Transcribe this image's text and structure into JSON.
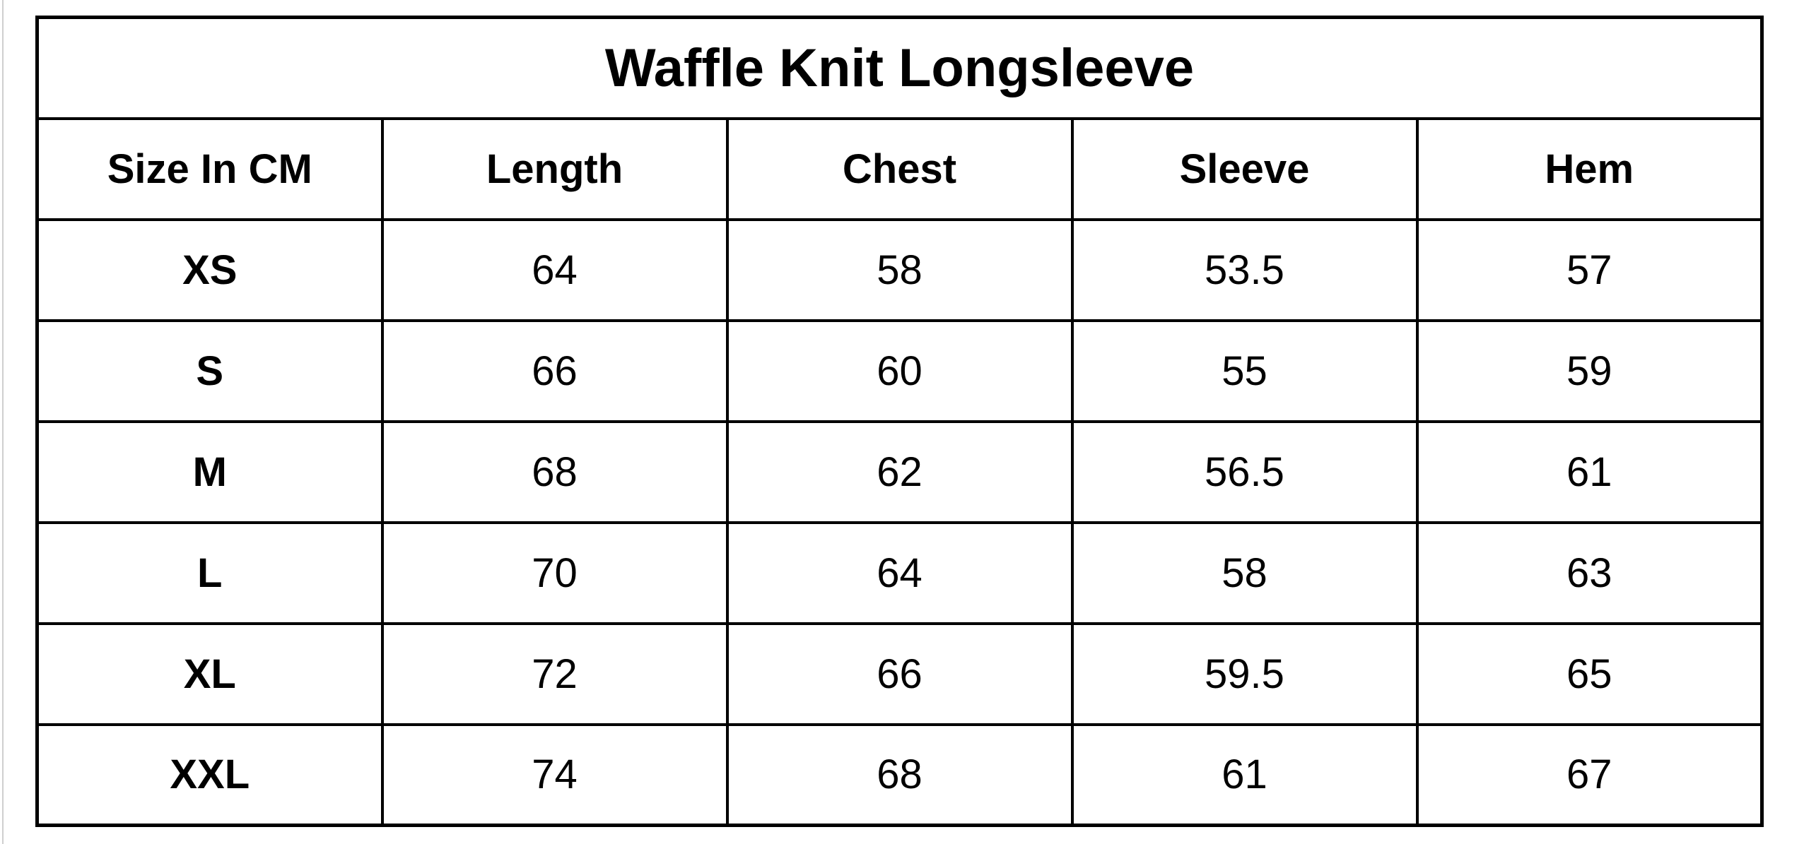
{
  "page": {
    "background_color": "#ffffff",
    "border_color": "#000000",
    "edge_line_color": "#cfcfcf"
  },
  "table": {
    "title": "Waffle Knit Longsleeve",
    "headers": [
      "Size In CM",
      "Length",
      "Chest",
      "Sleeve",
      "Hem"
    ],
    "rows": [
      {
        "size": "XS",
        "length": "64",
        "chest": "58",
        "sleeve": "53.5",
        "hem": "57"
      },
      {
        "size": "S",
        "length": "66",
        "chest": "60",
        "sleeve": "55",
        "hem": "59"
      },
      {
        "size": "M",
        "length": "68",
        "chest": "62",
        "sleeve": "56.5",
        "hem": "61"
      },
      {
        "size": "L",
        "length": "70",
        "chest": "64",
        "sleeve": "58",
        "hem": "63"
      },
      {
        "size": "XL",
        "length": "72",
        "chest": "66",
        "sleeve": "59.5",
        "hem": "65"
      },
      {
        "size": "XXL",
        "length": "74",
        "chest": "68",
        "sleeve": "61",
        "hem": "67"
      }
    ]
  },
  "chart_data": {
    "type": "table",
    "title": "Waffle Knit Longsleeve",
    "columns": [
      "Size In CM",
      "Length",
      "Chest",
      "Sleeve",
      "Hem"
    ],
    "rows": [
      [
        "XS",
        64,
        58,
        53.5,
        57
      ],
      [
        "S",
        66,
        60,
        55,
        59
      ],
      [
        "M",
        68,
        62,
        56.5,
        61
      ],
      [
        "L",
        70,
        64,
        58,
        63
      ],
      [
        "XL",
        72,
        66,
        59.5,
        65
      ],
      [
        "XXL",
        74,
        68,
        61,
        67
      ]
    ],
    "units": "cm"
  }
}
